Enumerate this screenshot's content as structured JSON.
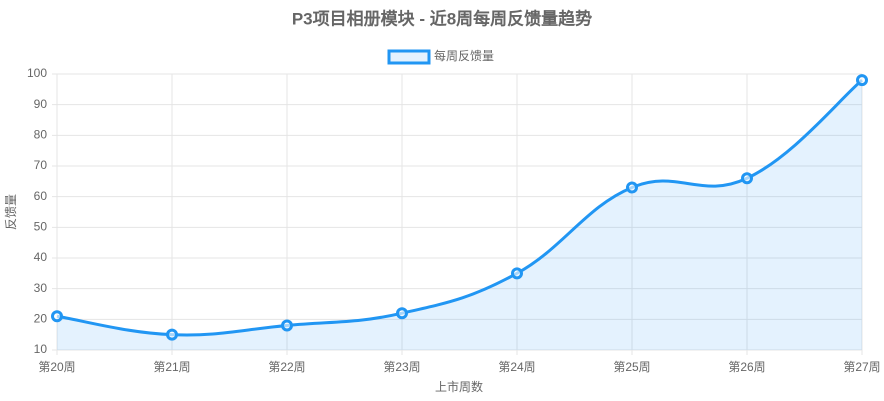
{
  "chart_data": {
    "type": "line",
    "title": "P3项目相册模块 - 近8周每周反馈量趋势",
    "x_label": "上市周数",
    "y_label": "反馈量",
    "categories": [
      "第20周",
      "第21周",
      "第22周",
      "第23周",
      "第24周",
      "第25周",
      "第26周",
      "第27周"
    ],
    "series": [
      {
        "name": "每周反馈量",
        "color": "#2196f3",
        "values": [
          21,
          15,
          18,
          22,
          35,
          63,
          66,
          98
        ]
      }
    ],
    "ylim": [
      10,
      100
    ],
    "yticks": [
      10,
      20,
      30,
      40,
      50,
      60,
      70,
      80,
      90,
      100
    ],
    "grid": true,
    "legend": "top",
    "fill": true,
    "smooth": true
  }
}
